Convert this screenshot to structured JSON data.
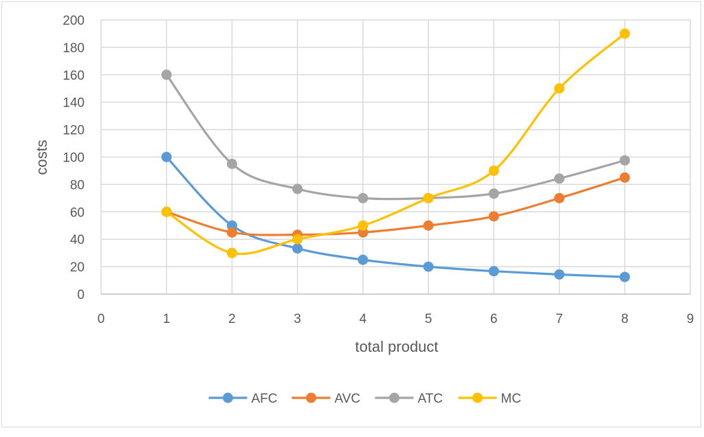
{
  "chart_data": {
    "type": "line",
    "title": "",
    "xlabel": "total product",
    "ylabel": "costs",
    "xlim": [
      0,
      9
    ],
    "ylim": [
      0,
      200
    ],
    "x_ticks": [
      "0",
      "1",
      "2",
      "3",
      "4",
      "5",
      "6",
      "7",
      "8",
      "9"
    ],
    "y_ticks": [
      "0",
      "20",
      "40",
      "60",
      "80",
      "100",
      "120",
      "140",
      "160",
      "180",
      "200"
    ],
    "grid": true,
    "smooth": true,
    "legend_position": "bottom",
    "x": [
      1,
      2,
      3,
      4,
      5,
      6,
      7,
      8
    ],
    "series": [
      {
        "name": "AFC",
        "color": "#5b9bd5",
        "values": [
          100,
          50,
          33.3,
          25,
          20,
          16.7,
          14.3,
          12.5
        ]
      },
      {
        "name": "AVC",
        "color": "#ed7d31",
        "values": [
          60,
          45,
          43.3,
          45,
          50,
          56.7,
          70,
          85
        ]
      },
      {
        "name": "ATC",
        "color": "#a5a5a5",
        "values": [
          160,
          95,
          76.7,
          70,
          70,
          73.3,
          84.3,
          97.5
        ]
      },
      {
        "name": "MC",
        "color": "#ffc000",
        "values": [
          60,
          30,
          40,
          50,
          70,
          90,
          150,
          190
        ]
      }
    ]
  }
}
